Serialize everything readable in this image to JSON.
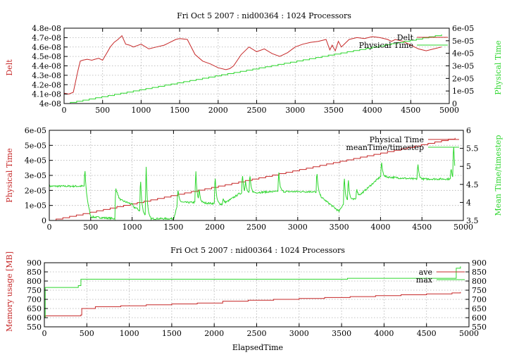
{
  "colors": {
    "red": "#c62828",
    "green": "#2ed62e",
    "grid": "#b0b0b0",
    "axis": "#000000"
  },
  "chart_data": [
    {
      "type": "line",
      "title": "Fri Oct 5 2007 : nid00364 : 1024 Processors",
      "xlabel": "",
      "ylabel": "Delt",
      "y2label": "Physical Time",
      "xlim": [
        0,
        5000
      ],
      "ylim": [
        4e-08,
        4.8e-08
      ],
      "y2lim": [
        0,
        6e-05
      ],
      "x_ticks": [
        "0",
        "500",
        "1000",
        "1500",
        "2000",
        "2500",
        "3000",
        "3500",
        "4000",
        "4500",
        "5000"
      ],
      "y_ticks": [
        "4e-08",
        "4.1e-08",
        "4.2e-08",
        "4.3e-08",
        "4.4e-08",
        "4.5e-08",
        "4.6e-08",
        "4.7e-08",
        "4.8e-08"
      ],
      "y2_ticks": [
        "0",
        "1e-05",
        "2e-05",
        "3e-05",
        "4e-05",
        "5e-05",
        "6e-05"
      ],
      "grid": true,
      "legend_position": "top-right",
      "series": [
        {
          "name": "Delt",
          "axis": "y",
          "color": "red",
          "x": [
            0,
            60,
            120,
            180,
            210,
            240,
            300,
            360,
            400,
            450,
            500,
            550,
            600,
            650,
            700,
            750,
            800,
            850,
            900,
            1000,
            1100,
            1200,
            1300,
            1350,
            1450,
            1500,
            1600,
            1700,
            1800,
            1900,
            2000,
            2100,
            2150,
            2200,
            2300,
            2400,
            2500,
            2600,
            2700,
            2800,
            2900,
            3000,
            3100,
            3200,
            3300,
            3400,
            3450,
            3480,
            3520,
            3560,
            3600,
            3700,
            3800,
            3900,
            4000,
            4100,
            4200,
            4250,
            4300,
            4400,
            4500,
            4600,
            4700,
            4800,
            4900
          ],
          "y": [
            4.11e-08,
            4.1e-08,
            4.12e-08,
            4.35e-08,
            4.45e-08,
            4.46e-08,
            4.47e-08,
            4.46e-08,
            4.47e-08,
            4.48e-08,
            4.46e-08,
            4.53e-08,
            4.6e-08,
            4.65e-08,
            4.68e-08,
            4.72e-08,
            4.63e-08,
            4.62e-08,
            4.6e-08,
            4.63e-08,
            4.58e-08,
            4.6e-08,
            4.62e-08,
            4.64e-08,
            4.68e-08,
            4.69e-08,
            4.68e-08,
            4.52e-08,
            4.45e-08,
            4.42e-08,
            4.38e-08,
            4.36e-08,
            4.37e-08,
            4.4e-08,
            4.52e-08,
            4.6e-08,
            4.55e-08,
            4.58e-08,
            4.53e-08,
            4.5e-08,
            4.54e-08,
            4.6e-08,
            4.63e-08,
            4.65e-08,
            4.66e-08,
            4.68e-08,
            4.57e-08,
            4.62e-08,
            4.56e-08,
            4.66e-08,
            4.6e-08,
            4.68e-08,
            4.7e-08,
            4.69e-08,
            4.71e-08,
            4.7e-08,
            4.68e-08,
            4.66e-08,
            4.68e-08,
            4.66e-08,
            4.62e-08,
            4.58e-08,
            4.56e-08,
            4.58e-08,
            4.6e-08
          ]
        },
        {
          "name": "Physical Time",
          "axis": "y2",
          "color": "green",
          "step": true,
          "x": [
            0,
            4900
          ],
          "y": [
            0,
            5.5e-05
          ]
        }
      ]
    },
    {
      "type": "line",
      "title": "",
      "xlabel": "",
      "ylabel": "Physical Time",
      "y2label": "Mean Time/timestep",
      "xlim": [
        0,
        5000
      ],
      "ylim": [
        0,
        6e-05
      ],
      "y2lim": [
        3.5,
        6
      ],
      "x_ticks": [
        "0",
        "500",
        "1000",
        "1500",
        "2000",
        "2500",
        "3000",
        "3500",
        "4000",
        "4500",
        "5000"
      ],
      "y_ticks": [
        "0",
        "1e-05",
        "2e-05",
        "3e-05",
        "4e-05",
        "5e-05",
        "6e-05"
      ],
      "y2_ticks": [
        "3.5",
        "4",
        "4.5",
        "5",
        "5.5",
        "6"
      ],
      "grid": true,
      "legend_position": "top-right",
      "series": [
        {
          "name": "Physical Time",
          "axis": "y",
          "color": "red",
          "step": true,
          "x": [
            0,
            4900
          ],
          "y": [
            0,
            5.5e-05
          ]
        },
        {
          "name": "meanTime/timestep",
          "axis": "y2",
          "color": "green",
          "baseline": [
            [
              0,
              4.45
            ],
            [
              420,
              4.45
            ],
            [
              500,
              3.6
            ],
            [
              800,
              3.55
            ],
            [
              820,
              4.1
            ],
            [
              1000,
              3.95
            ],
            [
              1200,
              3.55
            ],
            [
              1500,
              3.55
            ],
            [
              1560,
              4.0
            ],
            [
              1800,
              4.0
            ],
            [
              2100,
              3.95
            ],
            [
              2300,
              4.25
            ],
            [
              2700,
              4.3
            ],
            [
              3200,
              4.3
            ],
            [
              3500,
              3.75
            ],
            [
              3560,
              4.0
            ],
            [
              3700,
              4.1
            ],
            [
              4000,
              4.72
            ],
            [
              4400,
              4.65
            ],
            [
              4900,
              4.65
            ]
          ],
          "spikes": [
            [
              430,
              4.95
            ],
            [
              800,
              4.5
            ],
            [
              1020,
              3.85
            ],
            [
              1100,
              4.85
            ],
            [
              1170,
              5.0
            ],
            [
              1550,
              4.4
            ],
            [
              1770,
              4.85
            ],
            [
              1810,
              4.35
            ],
            [
              2000,
              4.9
            ],
            [
              2100,
              4.1
            ],
            [
              2330,
              4.9
            ],
            [
              2370,
              4.55
            ],
            [
              2420,
              4.85
            ],
            [
              2770,
              4.9
            ],
            [
              3230,
              5.0
            ],
            [
              3560,
              4.85
            ],
            [
              3610,
              4.7
            ],
            [
              3710,
              4.45
            ],
            [
              4010,
              5.2
            ],
            [
              4450,
              5.1
            ],
            [
              4850,
              5.0
            ],
            [
              4880,
              5.8
            ]
          ]
        }
      ]
    },
    {
      "type": "line",
      "title": "Fri Oct 5 2007 : nid00364 : 1024 Processors",
      "xlabel": "ElapsedTime",
      "ylabel": "Memory usage [MB]",
      "y2label": "",
      "xlim": [
        0,
        5000
      ],
      "ylim": [
        550,
        900
      ],
      "y2lim": [
        550,
        900
      ],
      "x_ticks": [
        "0",
        "500",
        "1000",
        "1500",
        "2000",
        "2500",
        "3000",
        "3500",
        "4000",
        "4500",
        "5000"
      ],
      "y_ticks": [
        "550",
        "600",
        "650",
        "700",
        "750",
        "800",
        "850",
        "900"
      ],
      "y2_ticks": [
        "550",
        "600",
        "650",
        "700",
        "750",
        "800",
        "850",
        "900"
      ],
      "grid": true,
      "legend_position": "top-right",
      "series": [
        {
          "name": "ave",
          "axis": "y",
          "color": "red",
          "step": true,
          "x": [
            0,
            10,
            430,
            440,
            600,
            900,
            1200,
            1500,
            1800,
            2100,
            2400,
            2700,
            3000,
            3300,
            3600,
            3900,
            4200,
            4500,
            4800,
            4900
          ],
          "y": [
            600,
            610,
            615,
            650,
            660,
            665,
            670,
            675,
            680,
            690,
            695,
            700,
            705,
            710,
            715,
            720,
            725,
            730,
            735,
            740
          ]
        },
        {
          "name": "max",
          "axis": "y",
          "color": "green",
          "step": true,
          "x": [
            0,
            10,
            400,
            430,
            3550,
            3570,
            4820,
            4850,
            4900
          ],
          "y": [
            600,
            765,
            775,
            810,
            810,
            815,
            815,
            870,
            880
          ]
        }
      ]
    }
  ]
}
